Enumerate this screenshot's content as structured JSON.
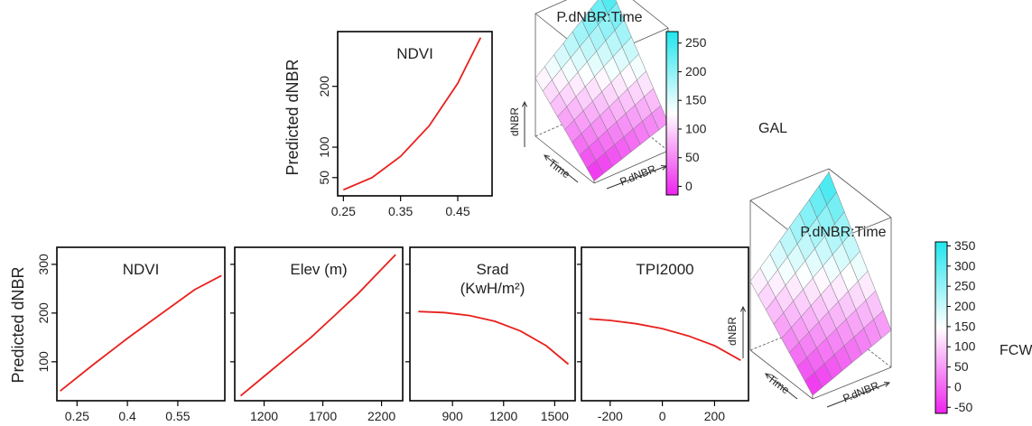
{
  "colors": {
    "curve": "#e8211d",
    "frame": "#000000",
    "scale_low": "#ee22ee",
    "scale_mid": "#ffffff",
    "scale_high": "#22e5ee"
  },
  "chart_data": [
    {
      "type": "line",
      "site": "GAL",
      "title": "NDVI",
      "ylabel": "Predicted dNBR",
      "xlim": [
        0.24,
        0.51
      ],
      "ylim": [
        20,
        290
      ],
      "xticks": [
        0.25,
        0.35,
        0.45
      ],
      "xtick_labels": [
        "0.25",
        "0.35",
        "0.45"
      ],
      "yticks": [
        50,
        100,
        200
      ],
      "ytick_labels": [
        "50",
        "100",
        "200"
      ],
      "x": [
        0.25,
        0.3,
        0.35,
        0.4,
        0.45,
        0.49
      ],
      "y": [
        30,
        50,
        85,
        135,
        205,
        280
      ]
    },
    {
      "type": "line",
      "site": "FCW",
      "title": "NDVI",
      "ylabel": "Predicted dNBR",
      "xlim": [
        0.19,
        0.69
      ],
      "ylim": [
        20,
        335
      ],
      "xticks": [
        0.25,
        0.4,
        0.55
      ],
      "xtick_labels": [
        "0.25",
        "0.4",
        "0.55"
      ],
      "yticks": [
        100,
        200,
        300
      ],
      "ytick_labels": [
        "100",
        "200",
        "300"
      ],
      "x": [
        0.2,
        0.3,
        0.4,
        0.5,
        0.6,
        0.68
      ],
      "y": [
        40,
        95,
        148,
        198,
        248,
        277
      ]
    },
    {
      "type": "line",
      "site": "FCW",
      "title": "Elev (m)",
      "ylabel": "",
      "xlim": [
        950,
        2380
      ],
      "ylim": [
        20,
        335
      ],
      "xticks": [
        1200,
        1700,
        2200
      ],
      "xtick_labels": [
        "1200",
        "1700",
        "2200"
      ],
      "yticks": [],
      "ytick_labels": [],
      "x": [
        1000,
        1200,
        1400,
        1600,
        1800,
        2000,
        2200,
        2320
      ],
      "y": [
        30,
        70,
        110,
        150,
        195,
        240,
        290,
        320
      ]
    },
    {
      "type": "line",
      "site": "FCW",
      "title": "Srad",
      "title_line2": "(KwH/m²)",
      "ylabel": "",
      "xlim": [
        650,
        1620
      ],
      "ylim": [
        20,
        335
      ],
      "xticks": [
        900,
        1200,
        1500
      ],
      "xtick_labels": [
        "900",
        "1200",
        "1500"
      ],
      "yticks": [],
      "ytick_labels": [],
      "x": [
        700,
        850,
        1000,
        1150,
        1300,
        1450,
        1580
      ],
      "y": [
        203,
        201,
        195,
        183,
        163,
        133,
        95
      ]
    },
    {
      "type": "line",
      "site": "FCW",
      "title": "TPI2000",
      "ylabel": "",
      "xlim": [
        -310,
        330
      ],
      "ylim": [
        20,
        335
      ],
      "xticks": [
        -200,
        0,
        200
      ],
      "xtick_labels": [
        "-200",
        "0",
        "200"
      ],
      "yticks": [],
      "ytick_labels": [],
      "x": [
        -280,
        -200,
        -100,
        0,
        100,
        200,
        300
      ],
      "y": [
        188,
        185,
        178,
        168,
        153,
        133,
        103
      ]
    },
    {
      "type": "heatmap",
      "site": "GAL",
      "title": "P.dNBR:Time",
      "axes": [
        "Time",
        "P.dNBR",
        "dNBR"
      ],
      "colorbar": {
        "min": -15,
        "max": 270,
        "ticks": [
          0,
          50,
          100,
          150,
          200,
          250
        ],
        "tick_labels": [
          "0",
          "50",
          "100",
          "150",
          "200",
          "250"
        ]
      },
      "surface": {
        "grid_size": 8,
        "corner_front": -10,
        "corner_left": 120,
        "corner_right": 50,
        "corner_back": 260
      }
    },
    {
      "type": "heatmap",
      "site": "FCW",
      "title": "P.dNBR:Time",
      "axes": [
        "Time",
        "P.dNBR",
        "dNBR"
      ],
      "colorbar": {
        "min": -65,
        "max": 360,
        "ticks": [
          -50,
          0,
          50,
          100,
          150,
          200,
          250,
          300,
          350
        ],
        "tick_labels": [
          "-50",
          "0",
          "50",
          "100",
          "150",
          "200",
          "250",
          "300",
          "350"
        ]
      },
      "surface": {
        "grid_size": 8,
        "corner_front": -55,
        "corner_left": 130,
        "corner_right": 40,
        "corner_back": 350
      }
    }
  ],
  "site_labels": {
    "gal": "GAL",
    "fcw": "FCW"
  }
}
